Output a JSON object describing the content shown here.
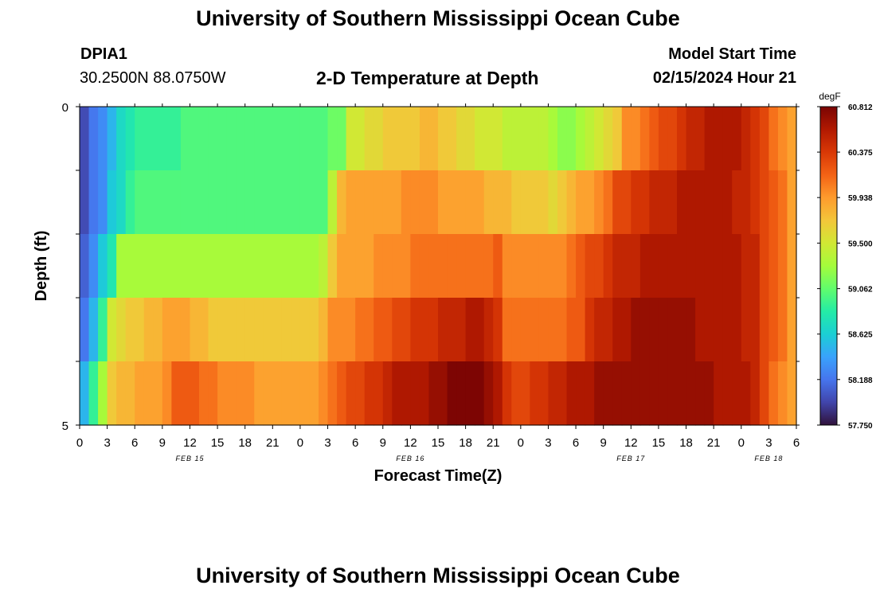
{
  "page": {
    "title": "University of Southern Mississippi Ocean Cube",
    "station_id": "DPIA1",
    "station_coords": "30.2500N  88.0750W",
    "plot_title": "2-D Temperature at Depth",
    "model_start_label": "Model Start Time",
    "model_start_value": "02/15/2024 Hour 21",
    "footer_title": "University of Southern Mississippi Ocean Cube"
  },
  "chart_data": {
    "type": "heatmap",
    "xlabel": "Forecast Time(Z)",
    "ylabel": "Depth (ft)",
    "x_tick_labels": [
      "0",
      "3",
      "6",
      "9",
      "12",
      "15",
      "18",
      "21",
      "0",
      "3",
      "6",
      "9",
      "12",
      "15",
      "18",
      "21",
      "0",
      "3",
      "6",
      "9",
      "12",
      "15",
      "18",
      "21",
      "0",
      "3",
      "6"
    ],
    "date_labels": [
      {
        "label": "FEB 15",
        "at_hour": 12
      },
      {
        "label": "FEB 16",
        "at_hour": 36
      },
      {
        "label": "FEB 17",
        "at_hour": 60
      },
      {
        "label": "FEB 18",
        "at_hour": 75
      }
    ],
    "x_range_hours": [
      0,
      78
    ],
    "y_tick_labels": [
      "0",
      "5"
    ],
    "ylim": [
      0,
      5
    ],
    "depth_rows": 5,
    "colorbar": {
      "unit": "degF",
      "tick_labels": [
        "60.812",
        "60.375",
        "59.938",
        "59.500",
        "59.062",
        "58.625",
        "58.188",
        "57.750"
      ],
      "min": 57.75,
      "max": 60.812,
      "colors": [
        "#30123b",
        "#4145ab",
        "#4675ed",
        "#39a2fc",
        "#1bcfd4",
        "#24eca6",
        "#61fc6c",
        "#a4fc3b",
        "#d1e834",
        "#f3c63a",
        "#fe9b2d",
        "#f36315",
        "#d93806",
        "#b11901",
        "#7a0403"
      ]
    },
    "columns_at_hours": [
      0,
      1,
      2,
      3,
      4,
      5,
      6,
      7,
      8,
      9,
      10,
      11,
      12,
      13,
      14,
      15,
      16,
      17,
      18,
      19,
      20,
      21,
      22,
      23,
      24,
      25,
      26,
      27,
      28,
      29,
      30,
      31,
      32,
      33,
      34,
      35,
      36,
      37,
      38,
      39,
      40,
      41,
      42,
      43,
      44,
      45,
      46,
      47,
      48,
      49,
      50,
      51,
      52,
      53,
      54,
      55,
      56,
      57,
      58,
      59,
      60,
      61,
      62,
      63,
      64,
      65,
      66,
      67,
      68,
      69,
      70,
      71,
      72,
      73,
      74,
      75,
      76,
      77
    ],
    "temperature_rows_degF": [
      [
        58.0,
        58.2,
        58.3,
        58.5,
        58.7,
        58.8,
        58.9,
        58.9,
        58.9,
        58.9,
        58.9,
        59.0,
        59.0,
        59.0,
        59.0,
        59.0,
        59.0,
        59.0,
        59.0,
        59.0,
        59.0,
        59.0,
        59.0,
        59.0,
        59.0,
        59.0,
        59.0,
        59.1,
        59.1,
        59.5,
        59.5,
        59.6,
        59.6,
        59.7,
        59.7,
        59.7,
        59.7,
        59.8,
        59.8,
        59.7,
        59.7,
        59.6,
        59.6,
        59.5,
        59.5,
        59.5,
        59.4,
        59.4,
        59.4,
        59.4,
        59.4,
        59.3,
        59.2,
        59.2,
        59.3,
        59.4,
        59.5,
        59.6,
        59.7,
        60.0,
        60.0,
        60.1,
        60.2,
        60.3,
        60.3,
        60.4,
        60.5,
        60.5,
        60.6,
        60.6,
        60.6,
        60.6,
        60.5,
        60.4,
        60.3,
        60.1,
        60.0,
        59.9
      ],
      [
        58.0,
        58.2,
        58.3,
        58.6,
        58.7,
        58.9,
        59.0,
        59.0,
        59.0,
        59.0,
        59.0,
        59.0,
        59.0,
        59.0,
        59.0,
        59.0,
        59.0,
        59.0,
        59.0,
        59.0,
        59.0,
        59.0,
        59.0,
        59.0,
        59.0,
        59.0,
        59.0,
        59.4,
        59.8,
        59.9,
        59.9,
        59.9,
        59.9,
        59.9,
        59.9,
        60.0,
        60.0,
        60.0,
        60.0,
        59.9,
        59.9,
        59.9,
        59.9,
        59.9,
        59.8,
        59.8,
        59.8,
        59.7,
        59.7,
        59.7,
        59.7,
        59.6,
        59.7,
        59.8,
        59.9,
        59.9,
        60.0,
        60.1,
        60.3,
        60.3,
        60.4,
        60.4,
        60.5,
        60.5,
        60.5,
        60.6,
        60.6,
        60.6,
        60.6,
        60.6,
        60.6,
        60.5,
        60.5,
        60.4,
        60.3,
        60.2,
        60.1,
        59.9
      ],
      [
        58.1,
        58.3,
        58.6,
        58.8,
        59.3,
        59.3,
        59.3,
        59.3,
        59.3,
        59.3,
        59.3,
        59.3,
        59.3,
        59.3,
        59.3,
        59.3,
        59.3,
        59.3,
        59.3,
        59.3,
        59.3,
        59.3,
        59.3,
        59.3,
        59.3,
        59.3,
        59.4,
        59.7,
        59.9,
        59.9,
        59.9,
        59.9,
        60.0,
        60.0,
        60.0,
        60.0,
        60.1,
        60.1,
        60.1,
        60.1,
        60.1,
        60.1,
        60.1,
        60.1,
        60.1,
        60.2,
        60.0,
        60.0,
        60.0,
        60.0,
        60.0,
        60.0,
        60.0,
        60.1,
        60.2,
        60.3,
        60.3,
        60.4,
        60.5,
        60.5,
        60.5,
        60.6,
        60.6,
        60.6,
        60.6,
        60.6,
        60.6,
        60.6,
        60.6,
        60.6,
        60.6,
        60.6,
        60.5,
        60.5,
        60.3,
        60.2,
        60.1,
        59.9
      ],
      [
        58.2,
        58.5,
        58.9,
        59.5,
        59.6,
        59.7,
        59.7,
        59.8,
        59.8,
        59.9,
        59.9,
        59.9,
        59.8,
        59.8,
        59.7,
        59.7,
        59.7,
        59.7,
        59.7,
        59.7,
        59.7,
        59.7,
        59.7,
        59.7,
        59.7,
        59.7,
        59.8,
        60.0,
        60.0,
        60.0,
        60.1,
        60.1,
        60.2,
        60.2,
        60.3,
        60.3,
        60.4,
        60.4,
        60.4,
        60.5,
        60.5,
        60.5,
        60.6,
        60.6,
        60.5,
        60.4,
        60.1,
        60.1,
        60.1,
        60.1,
        60.1,
        60.1,
        60.1,
        60.2,
        60.2,
        60.4,
        60.5,
        60.5,
        60.6,
        60.6,
        60.7,
        60.7,
        60.7,
        60.7,
        60.7,
        60.7,
        60.7,
        60.6,
        60.6,
        60.6,
        60.6,
        60.6,
        60.5,
        60.5,
        60.3,
        60.2,
        60.1,
        59.9
      ],
      [
        58.5,
        58.9,
        59.3,
        59.7,
        59.8,
        59.8,
        59.9,
        59.9,
        59.9,
        60.0,
        60.2,
        60.2,
        60.2,
        60.1,
        60.1,
        60.0,
        60.0,
        60.0,
        60.0,
        59.9,
        59.9,
        59.9,
        59.9,
        59.9,
        59.9,
        59.9,
        60.0,
        60.1,
        60.2,
        60.3,
        60.3,
        60.4,
        60.4,
        60.5,
        60.6,
        60.6,
        60.6,
        60.6,
        60.7,
        60.7,
        60.8,
        60.8,
        60.8,
        60.8,
        60.7,
        60.6,
        60.4,
        60.3,
        60.3,
        60.4,
        60.4,
        60.5,
        60.5,
        60.6,
        60.6,
        60.6,
        60.7,
        60.7,
        60.7,
        60.7,
        60.7,
        60.7,
        60.7,
        60.7,
        60.7,
        60.7,
        60.7,
        60.7,
        60.7,
        60.6,
        60.6,
        60.6,
        60.6,
        60.5,
        60.3,
        60.1,
        60.0,
        59.9
      ]
    ]
  }
}
